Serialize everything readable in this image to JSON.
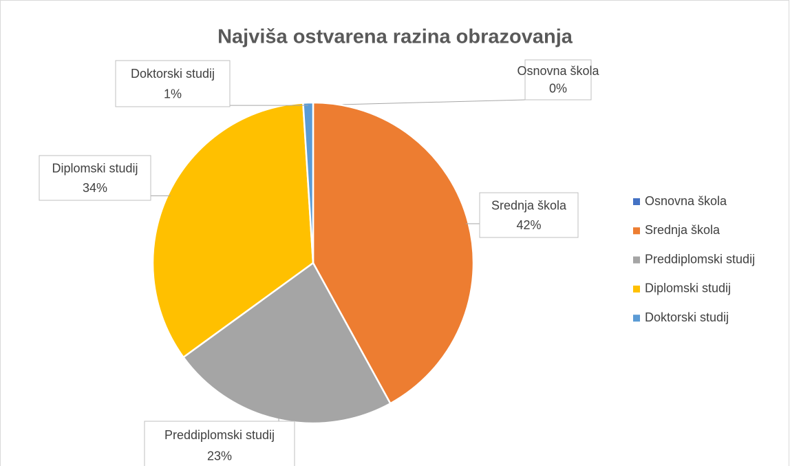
{
  "chart_data": {
    "type": "pie",
    "title": "Najviša ostvarena razina obrazovanja",
    "categories": [
      "Osnovna škola",
      "Srednja škola",
      "Preddiplomski studij",
      "Diplomski studij",
      "Doktorski studij"
    ],
    "values": [
      0,
      42,
      23,
      34,
      1
    ],
    "value_labels": [
      "0%",
      "42%",
      "23%",
      "34%",
      "1%"
    ],
    "colors": [
      "#4472c4",
      "#ed7d31",
      "#a5a5a5",
      "#ffc000",
      "#5b9bd5"
    ],
    "legend": "right"
  }
}
